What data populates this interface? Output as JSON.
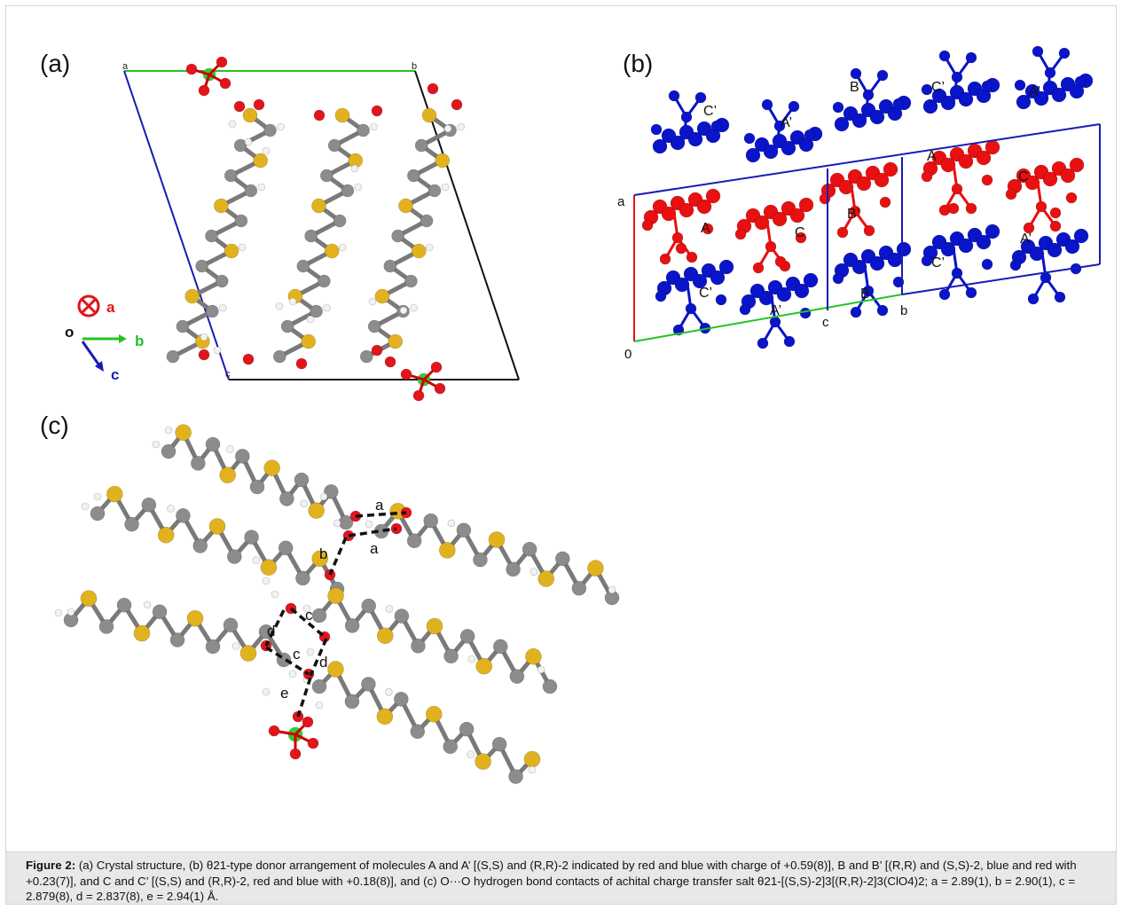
{
  "figure": {
    "panel_a_label": "(a)",
    "panel_b_label": "(b)",
    "panel_c_label": "(c)",
    "panel_a": {
      "cell_labels": [
        "a",
        "b",
        "c"
      ],
      "axes_legend": {
        "origin": "o",
        "axis_a": "a",
        "axis_b": "b",
        "axis_c": "c"
      }
    },
    "panel_b": {
      "molecule_labels": [
        "C’",
        "A’",
        "B",
        "C’",
        "A’",
        "A",
        "C",
        "B’",
        "A",
        "C",
        "C’",
        "B",
        "A’",
        "C’",
        "A’"
      ],
      "cell_labels": {
        "a": "a",
        "origin": "0",
        "c": "c",
        "b": "b"
      }
    },
    "panel_c": {
      "contact_labels": [
        "a",
        "a",
        "b",
        "c",
        "d",
        "c",
        "d",
        "e"
      ]
    },
    "colors": {
      "sulfur": "#e2b21e",
      "carbon": "#8c8c8c",
      "hydrogen": "#f2f2f2",
      "oxygen": "#e3141b",
      "chlorine": "#2fcf2f",
      "red_molecule": "#e81010",
      "blue_molecule": "#0a14c8"
    }
  },
  "caption": {
    "label": "Figure 2:",
    "text": " (a) Crystal structure, (b) θ21-type donor arrangement of molecules A and A’ [(S,S) and (R,R)-2 indicated by red and blue with charge of +0.59(8)], B and B’ [(R,R) and (S,S)-2, blue and red with +0.23(7)], and C and C’ [(S,S) and (R,R)-2, red and blue with +0.18(8)], and (c) O···O hydrogen bond contacts of achital charge transfer salt θ21-[(S,S)-2]3[(R,R)-2]3(ClO4)2; a = 2.89(1), b = 2.90(1), c = 2.879(8), d = 2.837(8), e = 2.94(1) Å."
  }
}
